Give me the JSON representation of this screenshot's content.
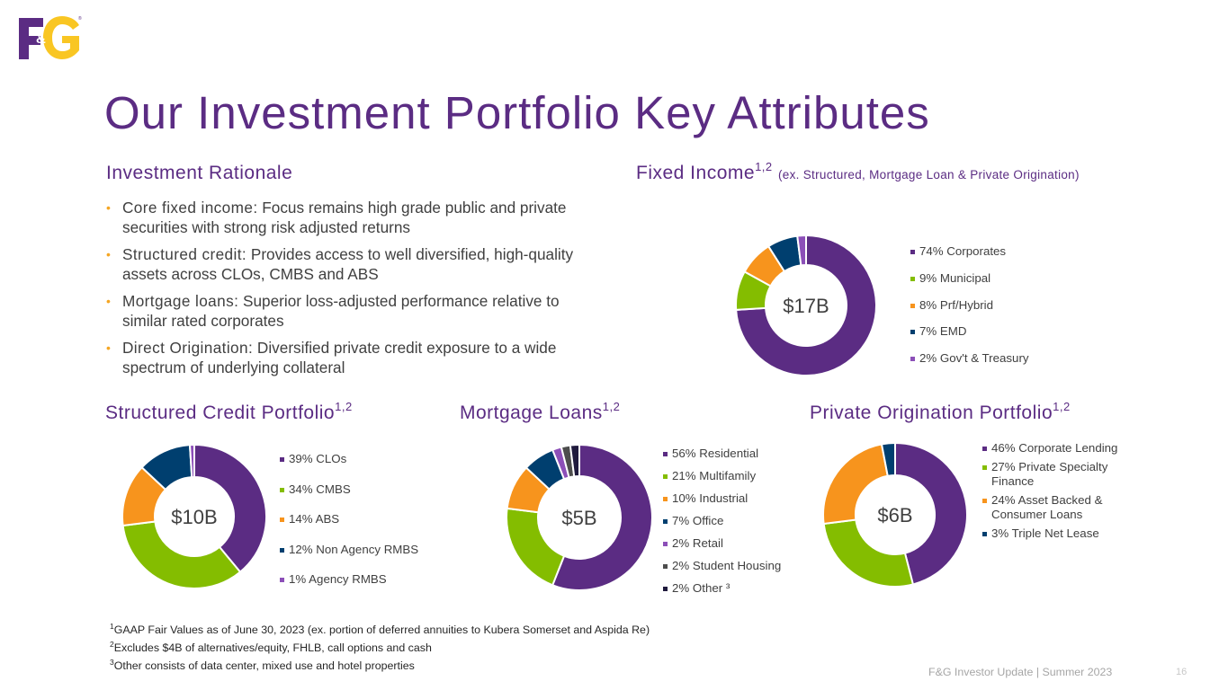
{
  "brand": {
    "logo_text": "F&G",
    "logo_purple": "#5b2c83",
    "logo_yellow": "#f9c623"
  },
  "page_title": "Our Investment Portfolio Key Attributes",
  "rationale": {
    "heading": "Investment Rationale",
    "bullets": [
      {
        "lead": "Core fixed income:",
        "text": " Focus remains high grade public and private securities with strong risk adjusted returns"
      },
      {
        "lead": "Structured credit:",
        "text": " Provides access to well diversified, high-quality assets across CLOs, CMBS and ABS"
      },
      {
        "lead": "Mortgage loans:",
        "text": " Superior loss-adjusted performance relative to similar rated corporates"
      },
      {
        "lead": "Direct Origination:",
        "text": " Diversified private credit exposure to a wide spectrum of underlying collateral"
      }
    ]
  },
  "sections": {
    "fixed_income": {
      "title": "Fixed Income",
      "sup": "1,2",
      "paren": "(ex. Structured, Mortgage Loan & Private Origination)"
    },
    "structured": {
      "title": "Structured Credit Portfolio",
      "sup": "1,2"
    },
    "mortgage": {
      "title": "Mortgage Loans",
      "sup": "1,2"
    },
    "private": {
      "title": "Private Origination Portfolio",
      "sup": "1,2"
    }
  },
  "chart_data": [
    {
      "id": "fixed_income",
      "type": "pie",
      "donut": true,
      "center_label": "$17B",
      "categories": [
        "74% Corporates",
        "9% Municipal",
        "8% Prf/Hybrid",
        "7% EMD",
        "2% Gov't & Treasury"
      ],
      "values": [
        74,
        9,
        8,
        7,
        2
      ],
      "colors": [
        "#5b2c83",
        "#84bd00",
        "#f7941d",
        "#003f6f",
        "#8c4fb8"
      ]
    },
    {
      "id": "structured",
      "type": "pie",
      "donut": true,
      "center_label": "$10B",
      "categories": [
        "39% CLOs",
        "34% CMBS",
        "14% ABS",
        "12% Non Agency RMBS",
        "1% Agency RMBS"
      ],
      "values": [
        39,
        34,
        14,
        12,
        1
      ],
      "colors": [
        "#5b2c83",
        "#84bd00",
        "#f7941d",
        "#003f6f",
        "#8c4fb8"
      ]
    },
    {
      "id": "mortgage",
      "type": "pie",
      "donut": true,
      "center_label": "$5B",
      "categories": [
        "56% Residential",
        "21% Multifamily",
        "10% Industrial",
        "7% Office",
        "2% Retail",
        "2% Student Housing",
        "2% Other ³"
      ],
      "values": [
        56,
        21,
        10,
        7,
        2,
        2,
        2
      ],
      "colors": [
        "#5b2c83",
        "#84bd00",
        "#f7941d",
        "#003f6f",
        "#8c4fb8",
        "#4d4d4d",
        "#1f1a3d"
      ]
    },
    {
      "id": "private",
      "type": "pie",
      "donut": true,
      "center_label": "$6B",
      "categories": [
        "46% Corporate Lending",
        "27% Private Specialty Finance",
        "24% Asset Backed & Consumer Loans",
        "3% Triple Net Lease"
      ],
      "values": [
        46,
        27,
        24,
        3
      ],
      "colors": [
        "#5b2c83",
        "#84bd00",
        "#f7941d",
        "#003f6f"
      ]
    }
  ],
  "footnotes": [
    {
      "sup": "1",
      "text": "GAAP Fair Values as of June 30, 2023 (ex. portion of deferred annuities to Kubera Somerset and Aspida Re)"
    },
    {
      "sup": "2",
      "text": "Excludes $4B of alternatives/equity, FHLB, call options and cash"
    },
    {
      "sup": "3",
      "text": "Other consists of data center, mixed use and hotel properties"
    }
  ],
  "footer": "F&G Investor Update | Summer 2023",
  "page_number": "16"
}
